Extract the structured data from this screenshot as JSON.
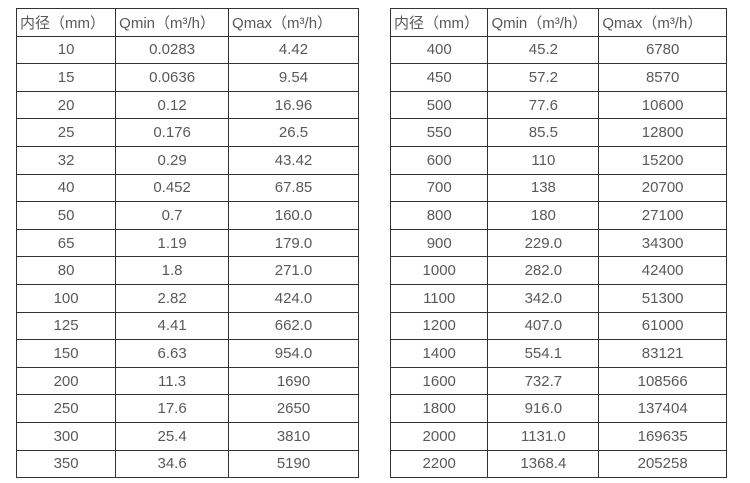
{
  "colors": {
    "border": "#333333",
    "text": "#595959",
    "background": "#ffffff"
  },
  "tables": [
    {
      "name": "flow-table-small-diameters",
      "headers": [
        "内径（mm）",
        "Qmin（m³/h）",
        "Qmax（m³/h）"
      ],
      "rows": [
        [
          "10",
          "0.0283",
          "4.42"
        ],
        [
          "15",
          "0.0636",
          "9.54"
        ],
        [
          "20",
          "0.12",
          "16.96"
        ],
        [
          "25",
          "0.176",
          "26.5"
        ],
        [
          "32",
          "0.29",
          "43.42"
        ],
        [
          "40",
          "0.452",
          "67.85"
        ],
        [
          "50",
          "0.7",
          "160.0"
        ],
        [
          "65",
          "1.19",
          "179.0"
        ],
        [
          "80",
          "1.8",
          "271.0"
        ],
        [
          "100",
          "2.82",
          "424.0"
        ],
        [
          "125",
          "4.41",
          "662.0"
        ],
        [
          "150",
          "6.63",
          "954.0"
        ],
        [
          "200",
          "11.3",
          "1690"
        ],
        [
          "250",
          "17.6",
          "2650"
        ],
        [
          "300",
          "25.4",
          "3810"
        ],
        [
          "350",
          "34.6",
          "5190"
        ]
      ]
    },
    {
      "name": "flow-table-large-diameters",
      "headers": [
        "内径（mm）",
        "Qmin（m³/h）",
        "Qmax（m³/h）"
      ],
      "rows": [
        [
          "400",
          "45.2",
          "6780"
        ],
        [
          "450",
          "57.2",
          "8570"
        ],
        [
          "500",
          "77.6",
          "10600"
        ],
        [
          "550",
          "85.5",
          "12800"
        ],
        [
          "600",
          "110",
          "15200"
        ],
        [
          "700",
          "138",
          "20700"
        ],
        [
          "800",
          "180",
          "27100"
        ],
        [
          "900",
          "229.0",
          "34300"
        ],
        [
          "1000",
          "282.0",
          "42400"
        ],
        [
          "1100",
          "342.0",
          "51300"
        ],
        [
          "1200",
          "407.0",
          "61000"
        ],
        [
          "1400",
          "554.1",
          "83121"
        ],
        [
          "1600",
          "732.7",
          "108566"
        ],
        [
          "1800",
          "916.0",
          "137404"
        ],
        [
          "2000",
          "1131.0",
          "169635"
        ],
        [
          "2200",
          "1368.4",
          "205258"
        ]
      ]
    }
  ]
}
